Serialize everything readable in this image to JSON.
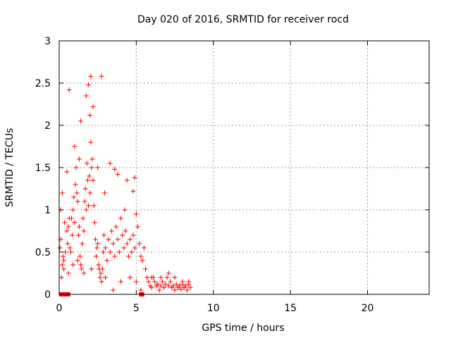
{
  "chart_data": {
    "type": "scatter",
    "title": "Day 020 of 2016, SRMTID for receiver rocd",
    "xlabel": "GPS time / hours",
    "ylabel": "SRMTID / TECUs",
    "xlim": [
      0,
      24
    ],
    "ylim": [
      0,
      3
    ],
    "xticks": [
      0,
      5,
      10,
      15,
      20
    ],
    "xtick_labels": [
      "0",
      "5",
      "10",
      "15",
      "20"
    ],
    "yticks": [
      0,
      0.5,
      1,
      1.5,
      2,
      2.5,
      3
    ],
    "ytick_labels": [
      "0",
      "0.5",
      "1",
      "1.5",
      "2",
      "2.5",
      "3"
    ],
    "grid": true,
    "marker": "+",
    "color": "#ff0000",
    "series": [
      {
        "name": "SRMTID",
        "x": [
          0.05,
          0.1,
          0.15,
          0.2,
          0.25,
          0.3,
          0.4,
          0.5,
          0.55,
          0.6,
          0.65,
          0.7,
          0.75,
          0.8,
          0.85,
          0.9,
          0.95,
          1.0,
          1.05,
          1.1,
          1.15,
          1.2,
          1.25,
          1.3,
          1.35,
          1.4,
          1.45,
          1.5,
          1.55,
          1.6,
          1.65,
          1.7,
          1.75,
          1.8,
          1.85,
          1.9,
          1.95,
          2.0,
          2.05,
          2.1,
          2.15,
          2.2,
          2.25,
          2.3,
          2.35,
          2.4,
          2.45,
          2.5,
          2.55,
          2.6,
          2.65,
          2.7,
          2.75,
          2.8,
          2.85,
          2.9,
          3.0,
          3.1,
          3.2,
          3.3,
          3.4,
          3.5,
          3.6,
          3.7,
          3.8,
          3.9,
          4.0,
          4.1,
          4.2,
          4.3,
          4.4,
          4.5,
          4.6,
          4.7,
          4.8,
          4.9,
          5.0,
          5.1,
          5.2,
          5.3,
          5.4,
          5.5,
          5.6,
          5.7,
          5.8,
          5.9,
          6.0,
          6.1,
          6.2,
          6.3,
          6.4,
          6.5,
          6.6,
          6.7,
          6.8,
          6.9,
          7.0,
          7.1,
          7.2,
          7.3,
          7.4,
          7.5,
          7.6,
          7.7,
          7.8,
          7.9,
          8.0,
          8.1,
          8.2,
          8.3,
          8.4,
          8.5,
          0.2,
          0.35,
          0.5,
          0.65,
          1.4,
          1.9,
          2.05,
          2.2,
          2.75,
          3.3,
          3.8,
          4.25,
          4.9,
          1.0,
          1.3,
          1.75,
          2.0,
          2.5,
          2.95,
          3.6,
          4.4,
          4.8,
          0.1,
          0.3,
          0.6,
          0.9,
          1.2,
          1.6,
          2.1,
          2.6,
          3.0,
          3.5,
          4.0,
          4.6,
          5.0,
          6.0,
          6.6,
          7.1,
          7.5,
          8.0,
          8.4,
          5.3
        ],
        "y": [
          0.55,
          0.65,
          0.2,
          0.35,
          0.45,
          0.4,
          0.5,
          0.75,
          0.6,
          0.8,
          0.9,
          0.55,
          0.5,
          0.9,
          0.7,
          1.0,
          1.15,
          0.85,
          1.3,
          1.5,
          1.2,
          1.1,
          0.7,
          0.8,
          0.45,
          0.35,
          0.3,
          0.6,
          0.9,
          0.75,
          1.1,
          1.25,
          1.0,
          1.55,
          1.35,
          1.05,
          1.4,
          1.2,
          1.8,
          1.5,
          1.6,
          1.35,
          1.05,
          0.85,
          0.65,
          0.45,
          0.55,
          0.6,
          0.35,
          0.3,
          0.2,
          0.25,
          0.15,
          0.3,
          0.5,
          0.7,
          0.55,
          0.4,
          0.65,
          0.5,
          0.75,
          0.6,
          0.45,
          0.8,
          0.65,
          0.5,
          0.9,
          0.7,
          0.55,
          0.75,
          0.6,
          0.45,
          0.65,
          0.5,
          0.7,
          0.55,
          0.95,
          0.8,
          0.6,
          0.45,
          0.4,
          0.55,
          0.3,
          0.2,
          0.15,
          0.1,
          0.08,
          0.2,
          0.15,
          0.1,
          0.12,
          0.05,
          0.1,
          0.15,
          0.08,
          0.12,
          0.2,
          0.1,
          0.15,
          0.08,
          0.1,
          0.05,
          0.12,
          0.08,
          0.1,
          0.06,
          0.12,
          0.08,
          0.1,
          0.05,
          0.12,
          0.08,
          1.2,
          0.85,
          1.45,
          2.42,
          2.05,
          2.48,
          2.58,
          2.22,
          2.58,
          1.55,
          1.42,
          1.0,
          1.38,
          1.75,
          1.6,
          2.35,
          2.12,
          1.5,
          1.2,
          1.48,
          1.35,
          1.22,
          1.0,
          0.3,
          0.25,
          0.35,
          0.4,
          0.25,
          0.3,
          0.3,
          0.2,
          0.05,
          0.15,
          0.2,
          0.15,
          0.2,
          0.2,
          0.25,
          0.2,
          0.15,
          0.15,
          0.05
        ],
        "x_zero": [
          0.1,
          0.2,
          0.3,
          0.5,
          0.6,
          5.3,
          5.4
        ],
        "y_zero": [
          0,
          0,
          0,
          0,
          0,
          0,
          0
        ]
      }
    ]
  }
}
